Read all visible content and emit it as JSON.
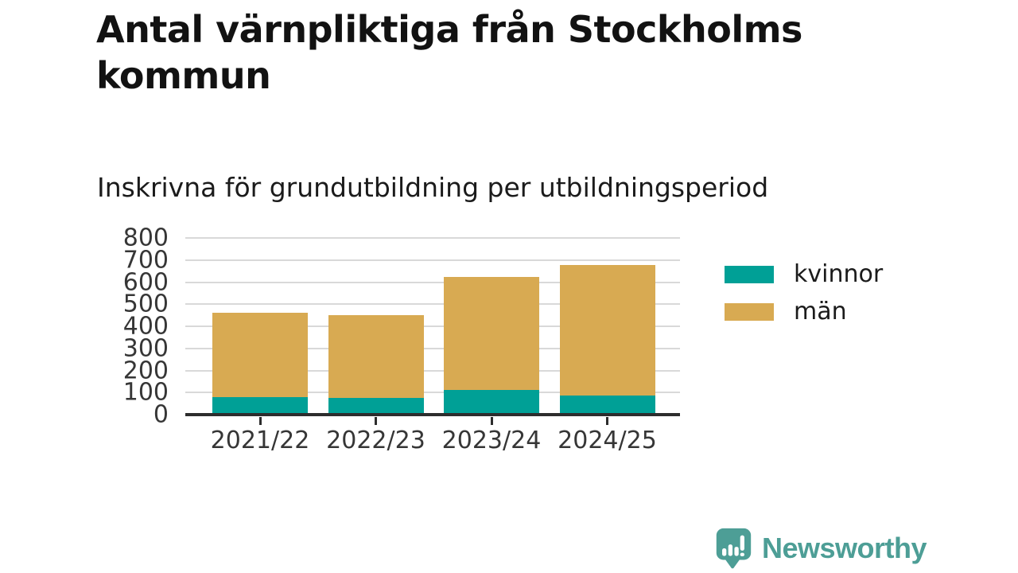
{
  "chart_data": {
    "type": "bar",
    "stacked": true,
    "title": "Antal värnpliktiga från Stockholms kommun",
    "subtitle": "Inskrivna för grundutbildning per utbildningsperiod",
    "categories": [
      "2021/22",
      "2022/23",
      "2023/24",
      "2024/25"
    ],
    "series": [
      {
        "name": "kvinnor",
        "color": "#00a096",
        "values": [
          78,
          76,
          110,
          88
        ]
      },
      {
        "name": "män",
        "color": "#d8aa52",
        "values": [
          382,
          374,
          512,
          588
        ]
      }
    ],
    "totals": [
      460,
      450,
      622,
      676
    ],
    "xlabel": "",
    "ylabel": "",
    "ylim": [
      0,
      800
    ],
    "ytick_step": 100,
    "yticks": [
      0,
      100,
      200,
      300,
      400,
      500,
      600,
      700,
      800
    ],
    "grid": true,
    "legend_position": "right"
  },
  "footer": {
    "brand": "Newsworthy"
  },
  "colors": {
    "background": "#ffffff",
    "title_text": "#121212",
    "body_text": "#1b1b1b",
    "tick_label": "#363636",
    "axis": "#2d2d2d",
    "grid": "#d9d9d9",
    "series_kvinnor": "#00a096",
    "series_man": "#d8aa52",
    "brand_teal": "#4d9e96"
  }
}
